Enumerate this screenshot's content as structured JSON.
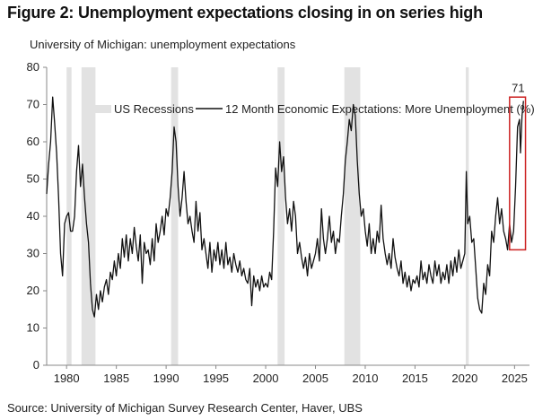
{
  "header": {
    "title": "Figure 2: Unemployment expectations closing in on series high",
    "subtitle": "University of Michigan: unemployment expectations"
  },
  "footer": {
    "source": "Source: University of Michigan Survey Research Center, Haver, UBS"
  },
  "colors": {
    "line": "#111111",
    "recession": "#e2e2e2",
    "highlight_box": "#cc2222",
    "axis": "#888888"
  },
  "chart_data": {
    "type": "line",
    "title": "Figure 2: Unemployment expectations closing in on series high",
    "subtitle": "University of Michigan: unemployment expectations",
    "xlabel": "",
    "ylabel": "",
    "xlim": [
      1980,
      2026
    ],
    "ylim": [
      0,
      80
    ],
    "yticks": [
      0,
      10,
      20,
      30,
      40,
      50,
      60,
      70,
      80
    ],
    "xticks": [
      1980,
      1985,
      1990,
      1995,
      2000,
      2005,
      2010,
      2015,
      2020,
      2025
    ],
    "grid": false,
    "legend_position": "top",
    "legend": {
      "recessions_label": "US Recessions",
      "line_label": "12 Month Economic Expectations: More Unemployment (%)"
    },
    "recessions": [
      [
        1980.0,
        1980.5
      ],
      [
        1981.5,
        1982.9
      ],
      [
        1990.5,
        1991.2
      ],
      [
        2001.2,
        2001.9
      ],
      [
        2007.9,
        2009.5
      ],
      [
        2020.1,
        2020.4
      ]
    ],
    "annotation": {
      "text": "71",
      "x": 2025.9,
      "y": 71
    },
    "highlight": {
      "x": [
        2024.5,
        2026.1
      ],
      "y": [
        31,
        72
      ]
    },
    "series": [
      {
        "name": "12 Month Economic Expectations: More Unemployment (%)",
        "points": [
          [
            1978.0,
            46
          ],
          [
            1978.2,
            54
          ],
          [
            1978.4,
            60
          ],
          [
            1978.6,
            72
          ],
          [
            1978.8,
            65
          ],
          [
            1979.0,
            57
          ],
          [
            1979.2,
            45
          ],
          [
            1979.4,
            30
          ],
          [
            1979.6,
            24
          ],
          [
            1979.8,
            38
          ],
          [
            1980.0,
            40
          ],
          [
            1980.2,
            41
          ],
          [
            1980.4,
            36
          ],
          [
            1980.6,
            36
          ],
          [
            1980.8,
            40
          ],
          [
            1981.0,
            52
          ],
          [
            1981.2,
            59
          ],
          [
            1981.4,
            48
          ],
          [
            1981.6,
            54
          ],
          [
            1981.8,
            45
          ],
          [
            1982.0,
            38
          ],
          [
            1982.2,
            33
          ],
          [
            1982.4,
            22
          ],
          [
            1982.6,
            15
          ],
          [
            1982.8,
            13
          ],
          [
            1983.0,
            19
          ],
          [
            1983.2,
            15
          ],
          [
            1983.4,
            20
          ],
          [
            1983.6,
            17
          ],
          [
            1983.8,
            21
          ],
          [
            1984.0,
            23
          ],
          [
            1984.2,
            19
          ],
          [
            1984.4,
            25
          ],
          [
            1984.6,
            23
          ],
          [
            1984.8,
            28
          ],
          [
            1985.0,
            24
          ],
          [
            1985.2,
            30
          ],
          [
            1985.4,
            26
          ],
          [
            1985.6,
            34
          ],
          [
            1985.8,
            29
          ],
          [
            1986.0,
            35
          ],
          [
            1986.2,
            28
          ],
          [
            1986.4,
            34
          ],
          [
            1986.6,
            30
          ],
          [
            1986.8,
            37
          ],
          [
            1987.0,
            32
          ],
          [
            1987.2,
            28
          ],
          [
            1987.4,
            35
          ],
          [
            1987.6,
            22
          ],
          [
            1987.8,
            33
          ],
          [
            1988.0,
            30
          ],
          [
            1988.2,
            31
          ],
          [
            1988.4,
            27
          ],
          [
            1988.6,
            34
          ],
          [
            1988.8,
            28
          ],
          [
            1989.0,
            38
          ],
          [
            1989.2,
            33
          ],
          [
            1989.4,
            36
          ],
          [
            1989.6,
            40
          ],
          [
            1989.8,
            35
          ],
          [
            1990.0,
            42
          ],
          [
            1990.2,
            40
          ],
          [
            1990.4,
            45
          ],
          [
            1990.6,
            52
          ],
          [
            1990.8,
            64
          ],
          [
            1991.0,
            60
          ],
          [
            1991.2,
            48
          ],
          [
            1991.4,
            40
          ],
          [
            1991.6,
            45
          ],
          [
            1991.8,
            52
          ],
          [
            1992.0,
            44
          ],
          [
            1992.2,
            38
          ],
          [
            1992.4,
            40
          ],
          [
            1992.6,
            36
          ],
          [
            1992.8,
            33
          ],
          [
            1993.0,
            44
          ],
          [
            1993.2,
            36
          ],
          [
            1993.4,
            41
          ],
          [
            1993.6,
            31
          ],
          [
            1993.8,
            34
          ],
          [
            1994.0,
            30
          ],
          [
            1994.2,
            26
          ],
          [
            1994.4,
            33
          ],
          [
            1994.6,
            25
          ],
          [
            1994.8,
            31
          ],
          [
            1995.0,
            28
          ],
          [
            1995.2,
            33
          ],
          [
            1995.4,
            27
          ],
          [
            1995.6,
            31
          ],
          [
            1995.8,
            26
          ],
          [
            1996.0,
            33
          ],
          [
            1996.2,
            27
          ],
          [
            1996.4,
            29
          ],
          [
            1996.6,
            25
          ],
          [
            1996.8,
            30
          ],
          [
            1997.0,
            27
          ],
          [
            1997.2,
            25
          ],
          [
            1997.4,
            28
          ],
          [
            1997.6,
            24
          ],
          [
            1997.8,
            26
          ],
          [
            1998.0,
            23
          ],
          [
            1998.2,
            22
          ],
          [
            1998.4,
            26
          ],
          [
            1998.6,
            16
          ],
          [
            1998.8,
            24
          ],
          [
            1999.0,
            21
          ],
          [
            1999.2,
            23
          ],
          [
            1999.4,
            20
          ],
          [
            1999.6,
            24
          ],
          [
            1999.8,
            21
          ],
          [
            2000.0,
            22
          ],
          [
            2000.2,
            21
          ],
          [
            2000.4,
            25
          ],
          [
            2000.6,
            23
          ],
          [
            2000.8,
            36
          ],
          [
            2001.0,
            53
          ],
          [
            2001.2,
            48
          ],
          [
            2001.4,
            60
          ],
          [
            2001.6,
            52
          ],
          [
            2001.8,
            56
          ],
          [
            2002.0,
            45
          ],
          [
            2002.2,
            38
          ],
          [
            2002.4,
            42
          ],
          [
            2002.6,
            36
          ],
          [
            2002.8,
            44
          ],
          [
            2003.0,
            40
          ],
          [
            2003.2,
            30
          ],
          [
            2003.4,
            33
          ],
          [
            2003.6,
            29
          ],
          [
            2003.8,
            26
          ],
          [
            2004.0,
            29
          ],
          [
            2004.2,
            24
          ],
          [
            2004.4,
            30
          ],
          [
            2004.6,
            26
          ],
          [
            2004.8,
            28
          ],
          [
            2005.0,
            30
          ],
          [
            2005.2,
            34
          ],
          [
            2005.4,
            28
          ],
          [
            2005.6,
            42
          ],
          [
            2005.8,
            34
          ],
          [
            2006.0,
            30
          ],
          [
            2006.2,
            34
          ],
          [
            2006.4,
            40
          ],
          [
            2006.6,
            33
          ],
          [
            2006.8,
            36
          ],
          [
            2007.0,
            30
          ],
          [
            2007.2,
            34
          ],
          [
            2007.4,
            33
          ],
          [
            2007.6,
            40
          ],
          [
            2007.8,
            46
          ],
          [
            2008.0,
            55
          ],
          [
            2008.2,
            60
          ],
          [
            2008.4,
            66
          ],
          [
            2008.6,
            63
          ],
          [
            2008.8,
            70
          ],
          [
            2009.0,
            67
          ],
          [
            2009.2,
            55
          ],
          [
            2009.4,
            46
          ],
          [
            2009.6,
            40
          ],
          [
            2009.8,
            42
          ],
          [
            2010.0,
            36
          ],
          [
            2010.2,
            32
          ],
          [
            2010.4,
            38
          ],
          [
            2010.6,
            30
          ],
          [
            2010.8,
            34
          ],
          [
            2011.0,
            30
          ],
          [
            2011.2,
            36
          ],
          [
            2011.4,
            33
          ],
          [
            2011.6,
            43
          ],
          [
            2011.8,
            34
          ],
          [
            2012.0,
            30
          ],
          [
            2012.2,
            27
          ],
          [
            2012.4,
            30
          ],
          [
            2012.6,
            26
          ],
          [
            2012.8,
            34
          ],
          [
            2013.0,
            29
          ],
          [
            2013.2,
            26
          ],
          [
            2013.4,
            24
          ],
          [
            2013.6,
            28
          ],
          [
            2013.8,
            22
          ],
          [
            2014.0,
            25
          ],
          [
            2014.2,
            21
          ],
          [
            2014.4,
            24
          ],
          [
            2014.6,
            20
          ],
          [
            2014.8,
            23
          ],
          [
            2015.0,
            22
          ],
          [
            2015.2,
            24
          ],
          [
            2015.4,
            21
          ],
          [
            2015.6,
            28
          ],
          [
            2015.8,
            23
          ],
          [
            2016.0,
            25
          ],
          [
            2016.2,
            22
          ],
          [
            2016.4,
            27
          ],
          [
            2016.6,
            24
          ],
          [
            2016.8,
            22
          ],
          [
            2017.0,
            28
          ],
          [
            2017.2,
            24
          ],
          [
            2017.4,
            27
          ],
          [
            2017.6,
            22
          ],
          [
            2017.8,
            25
          ],
          [
            2018.0,
            23
          ],
          [
            2018.2,
            27
          ],
          [
            2018.4,
            22
          ],
          [
            2018.6,
            28
          ],
          [
            2018.8,
            24
          ],
          [
            2019.0,
            29
          ],
          [
            2019.2,
            25
          ],
          [
            2019.4,
            31
          ],
          [
            2019.6,
            26
          ],
          [
            2019.8,
            28
          ],
          [
            2020.0,
            30
          ],
          [
            2020.15,
            52
          ],
          [
            2020.3,
            38
          ],
          [
            2020.5,
            40
          ],
          [
            2020.7,
            33
          ],
          [
            2020.9,
            34
          ],
          [
            2021.1,
            26
          ],
          [
            2021.3,
            18
          ],
          [
            2021.5,
            15
          ],
          [
            2021.7,
            14
          ],
          [
            2021.9,
            22
          ],
          [
            2022.1,
            19
          ],
          [
            2022.3,
            27
          ],
          [
            2022.5,
            24
          ],
          [
            2022.7,
            36
          ],
          [
            2022.9,
            33
          ],
          [
            2023.1,
            40
          ],
          [
            2023.3,
            45
          ],
          [
            2023.5,
            38
          ],
          [
            2023.7,
            42
          ],
          [
            2023.9,
            36
          ],
          [
            2024.1,
            34
          ],
          [
            2024.3,
            31
          ],
          [
            2024.5,
            38
          ],
          [
            2024.7,
            33
          ],
          [
            2024.9,
            36
          ],
          [
            2025.1,
            48
          ],
          [
            2025.3,
            64
          ],
          [
            2025.5,
            66
          ],
          [
            2025.6,
            57
          ],
          [
            2025.75,
            67
          ],
          [
            2025.9,
            71
          ]
        ]
      }
    ]
  }
}
